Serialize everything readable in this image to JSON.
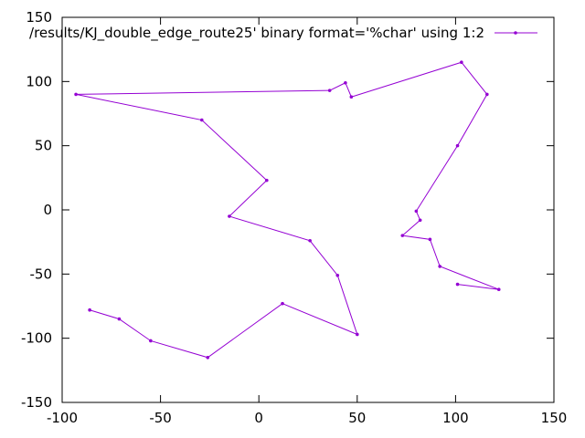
{
  "chart_data": {
    "type": "line",
    "xlim": [
      -100,
      150
    ],
    "ylim": [
      -150,
      150
    ],
    "x_ticks": [
      "-100",
      "-50",
      "0",
      "50",
      "100",
      "150"
    ],
    "y_ticks": [
      "150",
      "100",
      "50",
      "0",
      "-50",
      "-100",
      "-150"
    ],
    "grid": false,
    "legend_position": "top-right",
    "line_color": "#9400d3",
    "series": [
      {
        "name": "/results/KJ_double_edge_route25' binary format='%char' using 1:2",
        "points": [
          [
            -93,
            90
          ],
          [
            -29,
            70
          ],
          [
            4,
            23
          ],
          [
            -15,
            -5
          ],
          [
            26,
            -24
          ],
          [
            40,
            -51
          ],
          [
            50,
            -97
          ],
          [
            12,
            -73
          ],
          [
            -26,
            -115
          ],
          [
            -55,
            -102
          ],
          [
            -71,
            -85
          ],
          [
            -86,
            -78
          ]
        ]
      },
      {
        "name": "",
        "points": [
          [
            36,
            93
          ],
          [
            44,
            99
          ],
          [
            47,
            88
          ],
          [
            103,
            115
          ],
          [
            116,
            90
          ],
          [
            101,
            50
          ],
          [
            80,
            -1
          ],
          [
            82,
            -8
          ],
          [
            73,
            -20
          ],
          [
            87,
            -23
          ],
          [
            92,
            -44
          ],
          [
            122,
            -62
          ],
          [
            101,
            -58
          ]
        ]
      }
    ],
    "connector": [
      [
        -93,
        90
      ],
      [
        36,
        93
      ]
    ]
  }
}
